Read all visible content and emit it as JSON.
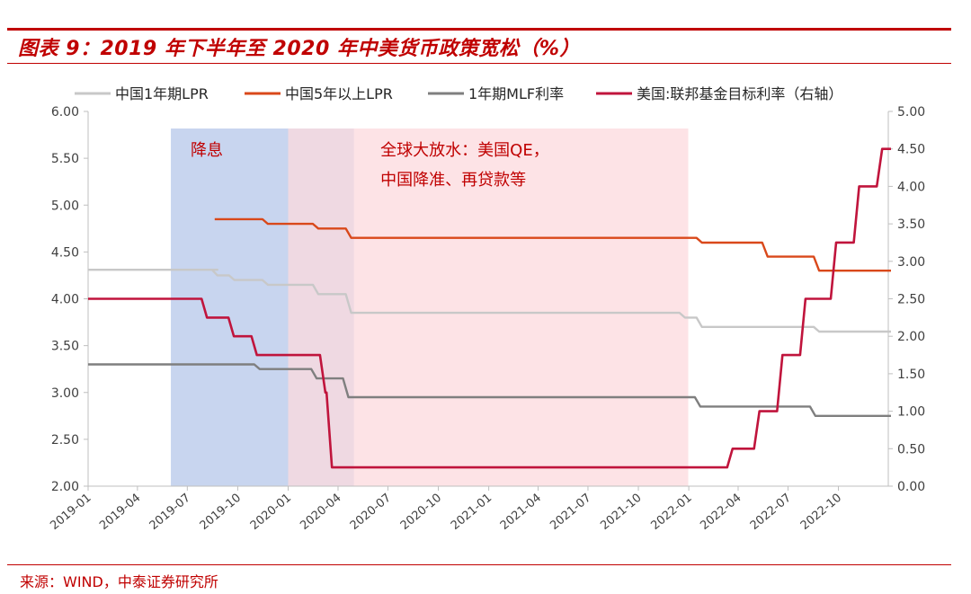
{
  "header": {
    "title": "图表 9：2019 年下半年至 2020 年中美货币政策宽松（%）"
  },
  "footer": {
    "source": "来源：WIND，中泰证券研究所"
  },
  "colors": {
    "brand": "#c00000",
    "lpr1y": "#c8c8c8",
    "lpr5y": "#d9481a",
    "mlf": "#7f7f7f",
    "fed": "#c0143c",
    "band_blue": "#c5d3ee",
    "band_pink": "#fcdadd"
  },
  "chart_data": {
    "type": "line",
    "legend_position": "top",
    "x_ticks": [
      "2019-01",
      "2019-04",
      "2019-07",
      "2019-10",
      "2020-01",
      "2020-04",
      "2020-07",
      "2020-10",
      "2021-01",
      "2021-04",
      "2021-07",
      "2021-10",
      "2022-01",
      "2022-04",
      "2022-07",
      "2022-10"
    ],
    "xlim": [
      "2019-01-01",
      "2022-12-31"
    ],
    "ylim_left": [
      2.0,
      6.0
    ],
    "ylim_right": [
      0.0,
      5.0
    ],
    "left_ticks": [
      "6.00",
      "5.50",
      "5.00",
      "4.50",
      "4.00",
      "3.50",
      "3.00",
      "2.50",
      "2.00"
    ],
    "right_ticks": [
      "5.00",
      "4.50",
      "4.00",
      "3.50",
      "3.00",
      "2.50",
      "2.00",
      "1.50",
      "1.00",
      "0.50",
      "0.00"
    ],
    "annotations": [
      {
        "label": "降息",
        "lines": [
          "降息"
        ],
        "start": "2019-06-01",
        "end": "2020-04-30"
      },
      {
        "label": "全球大放水：美国QE，中国降准、再贷款等",
        "lines": [
          "全球大放水：美国QE，",
          "中国降准、再贷款等"
        ],
        "start": "2020-01-01",
        "end": "2021-12-31"
      }
    ],
    "series": [
      {
        "name": "中国1年期LPR",
        "axis": "left",
        "points": [
          [
            "2019-01-01",
            4.31
          ],
          [
            "2019-08-20",
            4.31
          ],
          [
            "2019-08-20",
            4.25
          ],
          [
            "2019-09-20",
            4.2
          ],
          [
            "2019-11-20",
            4.15
          ],
          [
            "2020-02-20",
            4.05
          ],
          [
            "2020-04-20",
            3.85
          ],
          [
            "2021-12-20",
            3.8
          ],
          [
            "2022-01-20",
            3.7
          ],
          [
            "2022-08-22",
            3.65
          ],
          [
            "2022-12-31",
            3.65
          ]
        ]
      },
      {
        "name": "中国5年以上LPR",
        "axis": "left",
        "points": [
          [
            "2019-08-20",
            4.85
          ],
          [
            "2019-11-20",
            4.8
          ],
          [
            "2020-02-20",
            4.75
          ],
          [
            "2020-04-20",
            4.65
          ],
          [
            "2022-01-20",
            4.6
          ],
          [
            "2022-05-20",
            4.45
          ],
          [
            "2022-08-22",
            4.3
          ],
          [
            "2022-12-31",
            4.3
          ]
        ]
      },
      {
        "name": "1年期MLF利率",
        "axis": "left",
        "points": [
          [
            "2019-01-01",
            3.3
          ],
          [
            "2019-11-05",
            3.25
          ],
          [
            "2020-02-17",
            3.15
          ],
          [
            "2020-04-15",
            2.95
          ],
          [
            "2022-01-17",
            2.85
          ],
          [
            "2022-08-15",
            2.75
          ],
          [
            "2022-12-31",
            2.75
          ]
        ]
      },
      {
        "name": "美国:联邦基金目标利率（右轴）",
        "axis": "right",
        "points": [
          [
            "2019-01-01",
            2.5
          ],
          [
            "2019-08-01",
            2.25
          ],
          [
            "2019-09-19",
            2.0
          ],
          [
            "2019-10-31",
            1.75
          ],
          [
            "2020-03-04",
            1.25
          ],
          [
            "2020-03-16",
            0.25
          ],
          [
            "2022-03-17",
            0.5
          ],
          [
            "2022-05-05",
            1.0
          ],
          [
            "2022-06-16",
            1.75
          ],
          [
            "2022-07-28",
            2.5
          ],
          [
            "2022-09-22",
            3.25
          ],
          [
            "2022-11-03",
            4.0
          ],
          [
            "2022-12-15",
            4.5
          ],
          [
            "2022-12-31",
            4.5
          ]
        ]
      }
    ]
  }
}
